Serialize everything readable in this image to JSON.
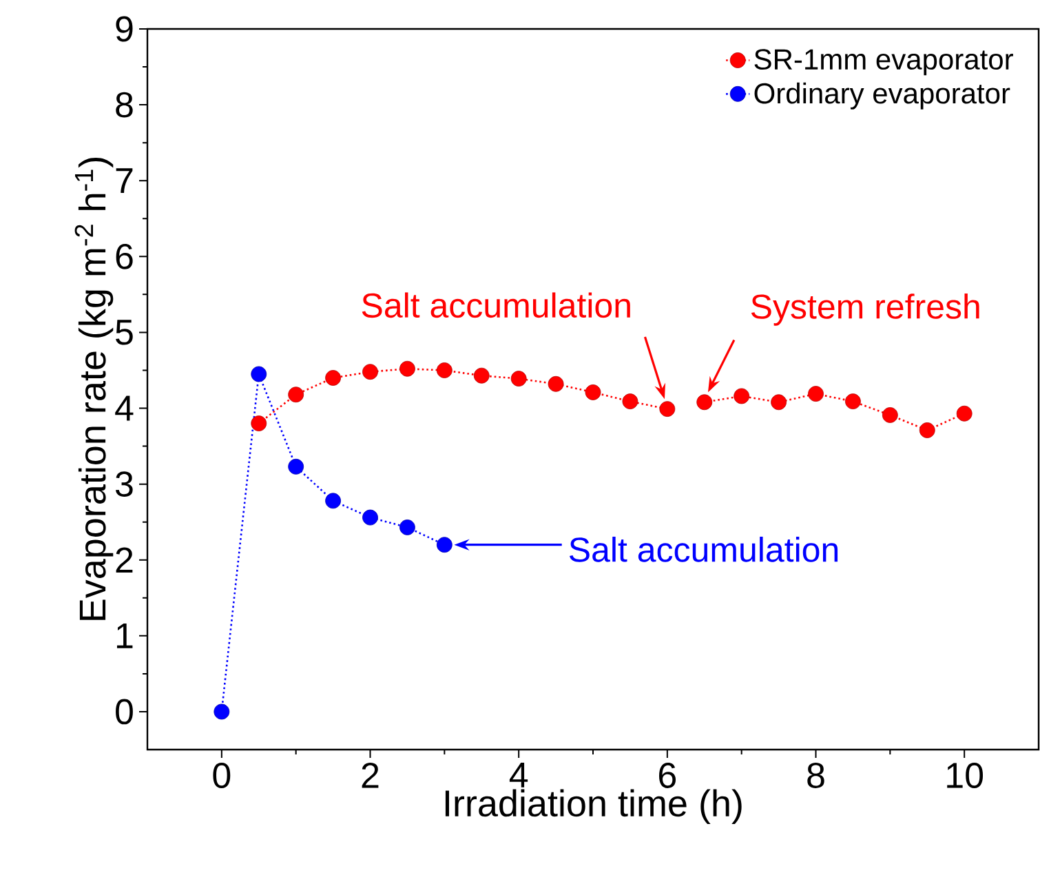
{
  "chart_data": {
    "type": "line",
    "xlabel": "Irradiation time (h)",
    "ylabel": "Evaporation rate (kg m$^{-2}$ h$^{-1}$)",
    "xlim": [
      -1,
      11
    ],
    "ylim": [
      -0.5,
      9
    ],
    "xticks": [
      0,
      2,
      4,
      6,
      8,
      10
    ],
    "yticks": [
      0,
      1,
      2,
      3,
      4,
      5,
      6,
      7,
      8,
      9
    ],
    "marker": "circle",
    "line_style": "dotted",
    "legend": "top right",
    "series": [
      {
        "name": "SR-1mm evaporator",
        "color": "#ff0000",
        "x": [
          0.5,
          1,
          1.5,
          2,
          2.5,
          3,
          3.5,
          4,
          4.5,
          5,
          5.5,
          6,
          6.25,
          6.5,
          7,
          7.5,
          8,
          8.5,
          9,
          9.5,
          10
        ],
        "values": [
          3.8,
          4.18,
          4.4,
          4.48,
          4.52,
          4.5,
          4.43,
          4.39,
          4.32,
          4.21,
          4.09,
          3.99,
          null,
          4.08,
          4.16,
          4.08,
          4.19,
          4.09,
          3.91,
          3.71,
          3.93
        ]
      },
      {
        "name": "Ordinary evaporator",
        "color": "#0000ff",
        "x": [
          0,
          0.5,
          1,
          1.5,
          2,
          2.5,
          3
        ],
        "values": [
          0,
          4.45,
          3.23,
          2.78,
          2.56,
          2.43,
          2.2
        ]
      }
    ],
    "annotations": [
      {
        "text": "Salt accumulation",
        "x": 6,
        "y": 3.99
      },
      {
        "text": "System refresh",
        "x": 6.5,
        "y": 4.08
      },
      "Salt accumulation"
    ]
  }
}
